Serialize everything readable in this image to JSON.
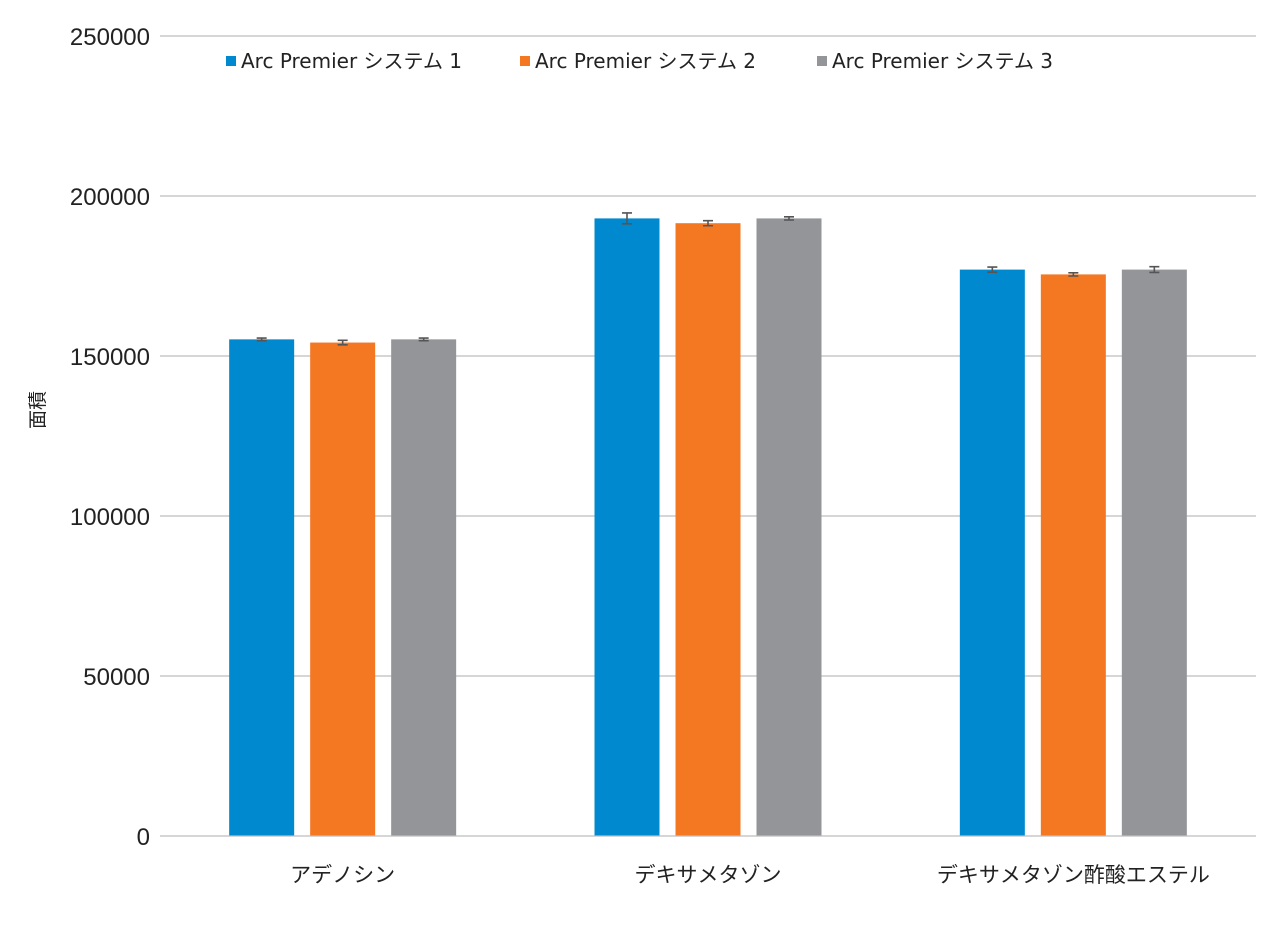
{
  "chart_data": {
    "type": "bar",
    "title": "",
    "xlabel": "",
    "ylabel": "面積",
    "ylim": [
      0,
      250000
    ],
    "yticks": [
      0,
      50000,
      100000,
      150000,
      200000,
      250000
    ],
    "ytick_labels": [
      "0",
      "50000",
      "100000",
      "150000",
      "200000",
      "250000"
    ],
    "grid": true,
    "legend": "top",
    "categories": [
      "アデノシン",
      "デキサメタゾン",
      "デキサメタゾン酢酸エステル"
    ],
    "series": [
      {
        "name": "Arc Premier システム 1",
        "color": "#0089cf",
        "values": [
          155200,
          193000,
          177000
        ],
        "errors": [
          400,
          1700,
          800
        ]
      },
      {
        "name": "Arc Premier システム 2",
        "color": "#f47722",
        "values": [
          154200,
          191500,
          175500
        ],
        "errors": [
          700,
          800,
          500
        ]
      },
      {
        "name": "Arc Premier システム 3",
        "color": "#939598",
        "values": [
          155200,
          193000,
          177000
        ],
        "errors": [
          400,
          500,
          900
        ]
      }
    ]
  }
}
